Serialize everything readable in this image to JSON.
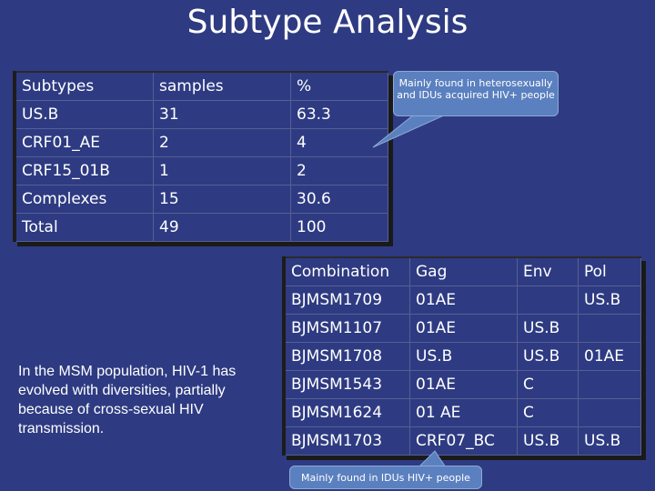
{
  "title": "Subtype Analysis",
  "subtype_table": {
    "headers": [
      "Subtypes",
      "samples",
      "%"
    ],
    "rows": [
      [
        "US.B",
        "31",
        "63.3"
      ],
      [
        "CRF01_AE",
        "2",
        "4"
      ],
      [
        "CRF15_01B",
        "1",
        "2"
      ],
      [
        "Complexes",
        "15",
        "30.6"
      ],
      [
        "Total",
        "49",
        "100"
      ]
    ]
  },
  "combination_table": {
    "headers": [
      "Combination",
      "Gag",
      "Env",
      "Pol"
    ],
    "rows": [
      [
        "BJMSM1709",
        "01AE",
        "",
        "US.B"
      ],
      [
        "BJMSM1107",
        "01AE",
        "US.B",
        ""
      ],
      [
        "BJMSM1708",
        "US.B",
        "US.B",
        "01AE"
      ],
      [
        "BJMSM1543",
        "01AE",
        "C",
        ""
      ],
      [
        "BJMSM1624",
        "01 AE",
        "C",
        ""
      ],
      [
        "BJMSM1703",
        "CRF07_BC",
        "US.B",
        "US.B"
      ]
    ]
  },
  "callout_top": "Mainly found in heterosexually and IDUs acquired HIV+ people",
  "callout_bottom": "Mainly found in IDUs HIV+ people",
  "note": "In the MSM population, HIV-1 has evolved with diversities, partially because of cross-sexual HIV transmission.",
  "colors": {
    "background": "#2e3b82",
    "callout": "#5b80bf"
  }
}
